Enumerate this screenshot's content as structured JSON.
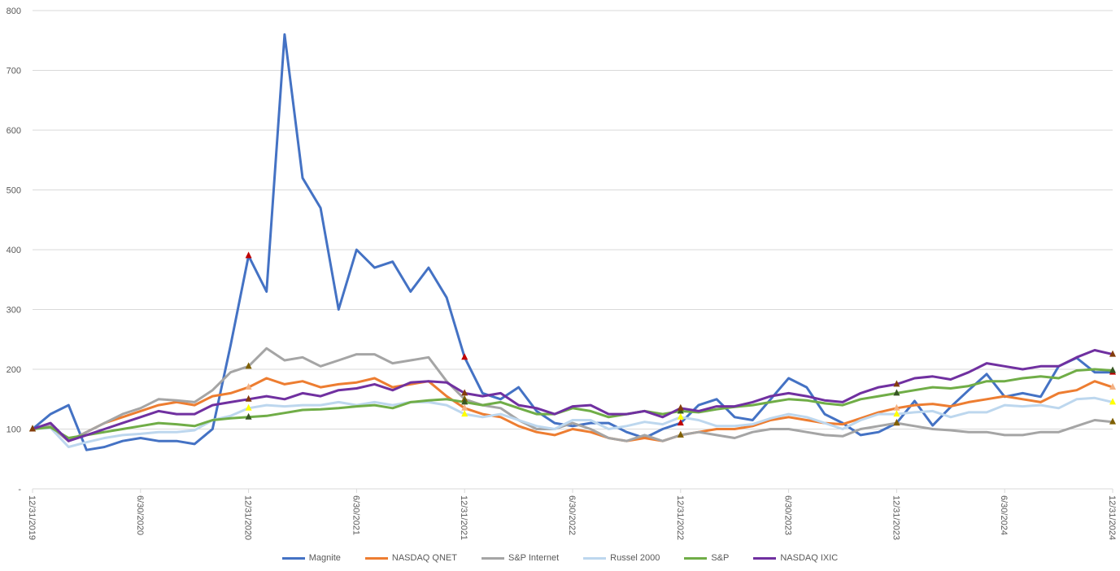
{
  "chart_data": {
    "type": "line",
    "title": "",
    "xlabel": "",
    "ylabel": "",
    "ylim": [
      0,
      800
    ],
    "yticks": [
      0,
      100,
      200,
      300,
      400,
      500,
      600,
      700,
      800
    ],
    "ytick_labels": [
      "-",
      "100",
      "200",
      "300",
      "400",
      "500",
      "600",
      "700",
      "800"
    ],
    "x_start": "12/31/2019",
    "x_end": "12/31/2024",
    "x_sampling": "monthly",
    "xtick_labels": [
      "12/31/2019",
      "6/30/2020",
      "12/31/2020",
      "6/30/2021",
      "12/31/2021",
      "6/30/2022",
      "12/31/2022",
      "6/30/2023",
      "12/31/2023",
      "6/30/2024",
      "12/31/2024"
    ],
    "grid": true,
    "legend_position": "bottom",
    "series": [
      {
        "name": "Magnite",
        "color": "#4472C4",
        "values": [
          100,
          125,
          140,
          65,
          70,
          80,
          85,
          80,
          80,
          75,
          100,
          240,
          390,
          330,
          760,
          520,
          470,
          300,
          400,
          370,
          380,
          330,
          370,
          320,
          220,
          160,
          150,
          170,
          130,
          110,
          105,
          110,
          110,
          95,
          85,
          100,
          110,
          140,
          150,
          120,
          115,
          150,
          185,
          170,
          125,
          110,
          90,
          95,
          110,
          147,
          106,
          137,
          165,
          192,
          154,
          160,
          154,
          205,
          219,
          195,
          195
        ]
      },
      {
        "name": "NASDAQ QNET",
        "color": "#ED7D31",
        "values": [
          100,
          105,
          80,
          95,
          110,
          120,
          130,
          140,
          145,
          140,
          155,
          160,
          170,
          185,
          175,
          180,
          170,
          175,
          178,
          185,
          170,
          175,
          180,
          155,
          135,
          125,
          120,
          105,
          95,
          90,
          100,
          95,
          85,
          80,
          85,
          80,
          90,
          95,
          100,
          100,
          105,
          115,
          120,
          115,
          110,
          108,
          118,
          128,
          135,
          140,
          142,
          138,
          145,
          150,
          155,
          150,
          145,
          160,
          165,
          180,
          170
        ]
      },
      {
        "name": "S&P Internet",
        "color": "#A5A5A5",
        "values": [
          100,
          105,
          80,
          95,
          110,
          125,
          135,
          150,
          148,
          145,
          165,
          195,
          205,
          235,
          215,
          220,
          205,
          215,
          225,
          225,
          210,
          215,
          220,
          180,
          150,
          140,
          135,
          115,
          100,
          100,
          110,
          100,
          85,
          80,
          90,
          80,
          90,
          95,
          90,
          85,
          95,
          100,
          100,
          95,
          90,
          88,
          100,
          105,
          110,
          105,
          100,
          98,
          95,
          95,
          90,
          90,
          95,
          95,
          105,
          115,
          112
        ]
      },
      {
        "name": "Russel 2000",
        "color": "#BDD7EE",
        "values": [
          100,
          102,
          70,
          78,
          85,
          90,
          92,
          95,
          95,
          98,
          115,
          122,
          135,
          140,
          138,
          140,
          140,
          145,
          140,
          145,
          140,
          145,
          145,
          140,
          125,
          120,
          125,
          115,
          105,
          100,
          115,
          115,
          100,
          105,
          112,
          108,
          120,
          115,
          105,
          105,
          108,
          118,
          125,
          120,
          110,
          100,
          115,
          125,
          125,
          128,
          130,
          120,
          128,
          128,
          140,
          138,
          140,
          135,
          150,
          152,
          145
        ]
      },
      {
        "name": "S&P",
        "color": "#70AD47",
        "values": [
          100,
          103,
          85,
          90,
          95,
          100,
          105,
          110,
          108,
          105,
          115,
          118,
          120,
          122,
          127,
          132,
          133,
          135,
          138,
          140,
          135,
          145,
          148,
          150,
          145,
          140,
          145,
          135,
          125,
          125,
          135,
          130,
          120,
          125,
          130,
          125,
          130,
          128,
          133,
          137,
          140,
          145,
          150,
          148,
          143,
          140,
          150,
          155,
          160,
          165,
          170,
          168,
          172,
          180,
          180,
          185,
          188,
          185,
          198,
          200,
          198
        ]
      },
      {
        "name": "NASDAQ IXIC",
        "color": "#7030A0",
        "values": [
          100,
          110,
          80,
          90,
          100,
          110,
          120,
          130,
          125,
          125,
          140,
          145,
          150,
          155,
          150,
          160,
          155,
          165,
          168,
          175,
          165,
          178,
          180,
          178,
          160,
          155,
          160,
          140,
          135,
          125,
          138,
          140,
          125,
          125,
          130,
          120,
          135,
          130,
          138,
          138,
          145,
          155,
          160,
          155,
          148,
          145,
          160,
          170,
          175,
          185,
          188,
          183,
          195,
          210,
          205,
          200,
          205,
          205,
          220,
          232,
          225
        ]
      }
    ]
  }
}
